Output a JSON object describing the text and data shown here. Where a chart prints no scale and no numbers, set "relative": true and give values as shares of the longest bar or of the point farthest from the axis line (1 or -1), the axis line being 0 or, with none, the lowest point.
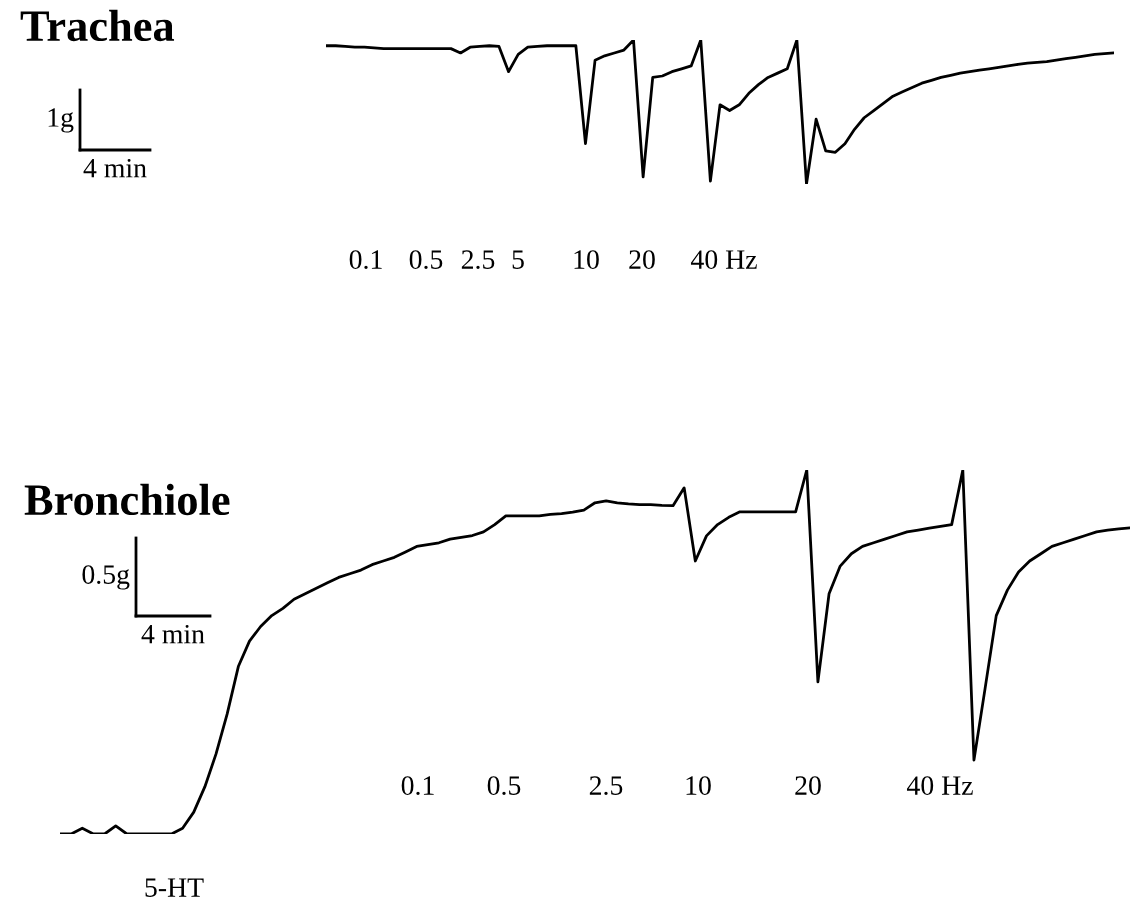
{
  "chart_data": [
    {
      "type": "line",
      "title": "Trachea",
      "relative": true,
      "line_style": "solid",
      "categories": [
        null,
        null,
        null,
        null,
        null,
        null,
        null,
        null,
        null,
        null,
        null,
        null,
        null,
        null,
        null,
        null,
        null,
        null,
        null,
        null,
        null,
        null,
        null,
        null,
        null,
        null,
        null,
        null,
        null,
        null,
        null,
        null,
        null,
        null,
        null,
        null,
        null,
        null,
        null,
        null,
        null,
        null,
        null,
        null,
        null,
        null,
        null,
        null,
        null,
        null,
        null,
        null,
        null,
        null,
        null,
        null,
        null,
        null,
        null,
        null,
        null,
        null,
        null,
        null,
        null,
        null,
        null,
        null,
        null,
        null,
        null,
        null,
        null,
        null,
        null,
        null,
        null,
        null,
        null,
        null,
        null,
        null,
        null
      ],
      "series": [
        {
          "color": "#000000",
          "values": [
            0.96,
            0.96,
            0.955,
            0.95,
            0.95,
            0.945,
            0.94,
            0.94,
            0.94,
            0.94,
            0.94,
            0.94,
            0.94,
            0.94,
            0.91,
            0.95,
            0.955,
            0.96,
            0.955,
            0.78,
            0.9,
            0.95,
            0.955,
            0.96,
            0.96,
            0.96,
            0.96,
            0.28,
            0.86,
            0.89,
            0.91,
            0.93,
            1.0,
            0.05,
            0.74,
            0.75,
            0.78,
            0.8,
            0.82,
            1.0,
            0.02,
            0.55,
            0.51,
            0.55,
            0.63,
            0.69,
            0.74,
            0.77,
            0.8,
            1.0,
            0,
            0.45,
            0.23,
            0.22,
            0.28,
            0.38,
            0.46,
            0.51,
            0.56,
            0.61,
            0.64,
            0.67,
            0.7,
            0.72,
            0.74,
            0.755,
            0.77,
            0.78,
            0.79,
            0.8,
            0.81,
            0.82,
            0.83,
            0.84,
            0.845,
            0.85,
            0.86,
            0.87,
            0.88,
            0.89,
            0.9,
            0.905,
            0.91
          ]
        }
      ],
      "annotations": [
        "1g",
        "4 min",
        "0.1",
        "0.5",
        "2.5",
        "5",
        "10",
        "20",
        "40 Hz"
      ]
    },
    {
      "type": "line",
      "title": "Bronchiole",
      "relative": true,
      "line_style": "solid",
      "categories": [
        null,
        null,
        null,
        null,
        null,
        null,
        null,
        null,
        null,
        null,
        null,
        null,
        null,
        null,
        null,
        null,
        null,
        null,
        null,
        null,
        null,
        null,
        null,
        null,
        null,
        null,
        null,
        null,
        null,
        null,
        null,
        null,
        null,
        null,
        null,
        null,
        null,
        null,
        null,
        null,
        null,
        null,
        null,
        null,
        null,
        null,
        null,
        null,
        null,
        null,
        null,
        null,
        null,
        null,
        null,
        null,
        null,
        null,
        null,
        null,
        null,
        null,
        null,
        null,
        null,
        null,
        null,
        null,
        null,
        null,
        null,
        null,
        null,
        null,
        null,
        null,
        null,
        null,
        null,
        null,
        null,
        null,
        null,
        null,
        null,
        null,
        null,
        null,
        null,
        null,
        null,
        null,
        null,
        null,
        null,
        null,
        null
      ],
      "series": [
        {
          "color": "#000000",
          "values": [
            0,
            0,
            0.016,
            0,
            0,
            0.022,
            0,
            0,
            0,
            0,
            0,
            0.016,
            0.06,
            0.13,
            0.22,
            0.33,
            0.46,
            0.53,
            0.57,
            0.6,
            0.62,
            0.645,
            0.66,
            0.675,
            0.69,
            0.705,
            0.715,
            0.725,
            0.74,
            0.75,
            0.76,
            0.775,
            0.79,
            0.795,
            0.8,
            0.81,
            0.815,
            0.82,
            0.83,
            0.85,
            0.874,
            0.874,
            0.874,
            0.874,
            0.878,
            0.88,
            0.884,
            0.89,
            0.91,
            0.915,
            0.91,
            0.907,
            0.905,
            0.905,
            0.903,
            0.902,
            0.951,
            0.75,
            0.819,
            0.85,
            0.87,
            0.885,
            0.885,
            0.885,
            0.885,
            0.885,
            0.885,
            1.0,
            0.418,
            0.66,
            0.736,
            0.77,
            0.79,
            0.8,
            0.81,
            0.82,
            0.83,
            0.835,
            0.84,
            0.845,
            0.85,
            1.0,
            0.203,
            0.4,
            0.6,
            0.67,
            0.72,
            0.75,
            0.77,
            0.79,
            0.8,
            0.81,
            0.82,
            0.83,
            0.835,
            0.838,
            0.841
          ]
        }
      ],
      "annotations": [
        "0.5g",
        "4 min",
        "5-HT",
        "0.1",
        "0.5",
        "2.5",
        "10",
        "20",
        "40 Hz"
      ]
    }
  ]
}
